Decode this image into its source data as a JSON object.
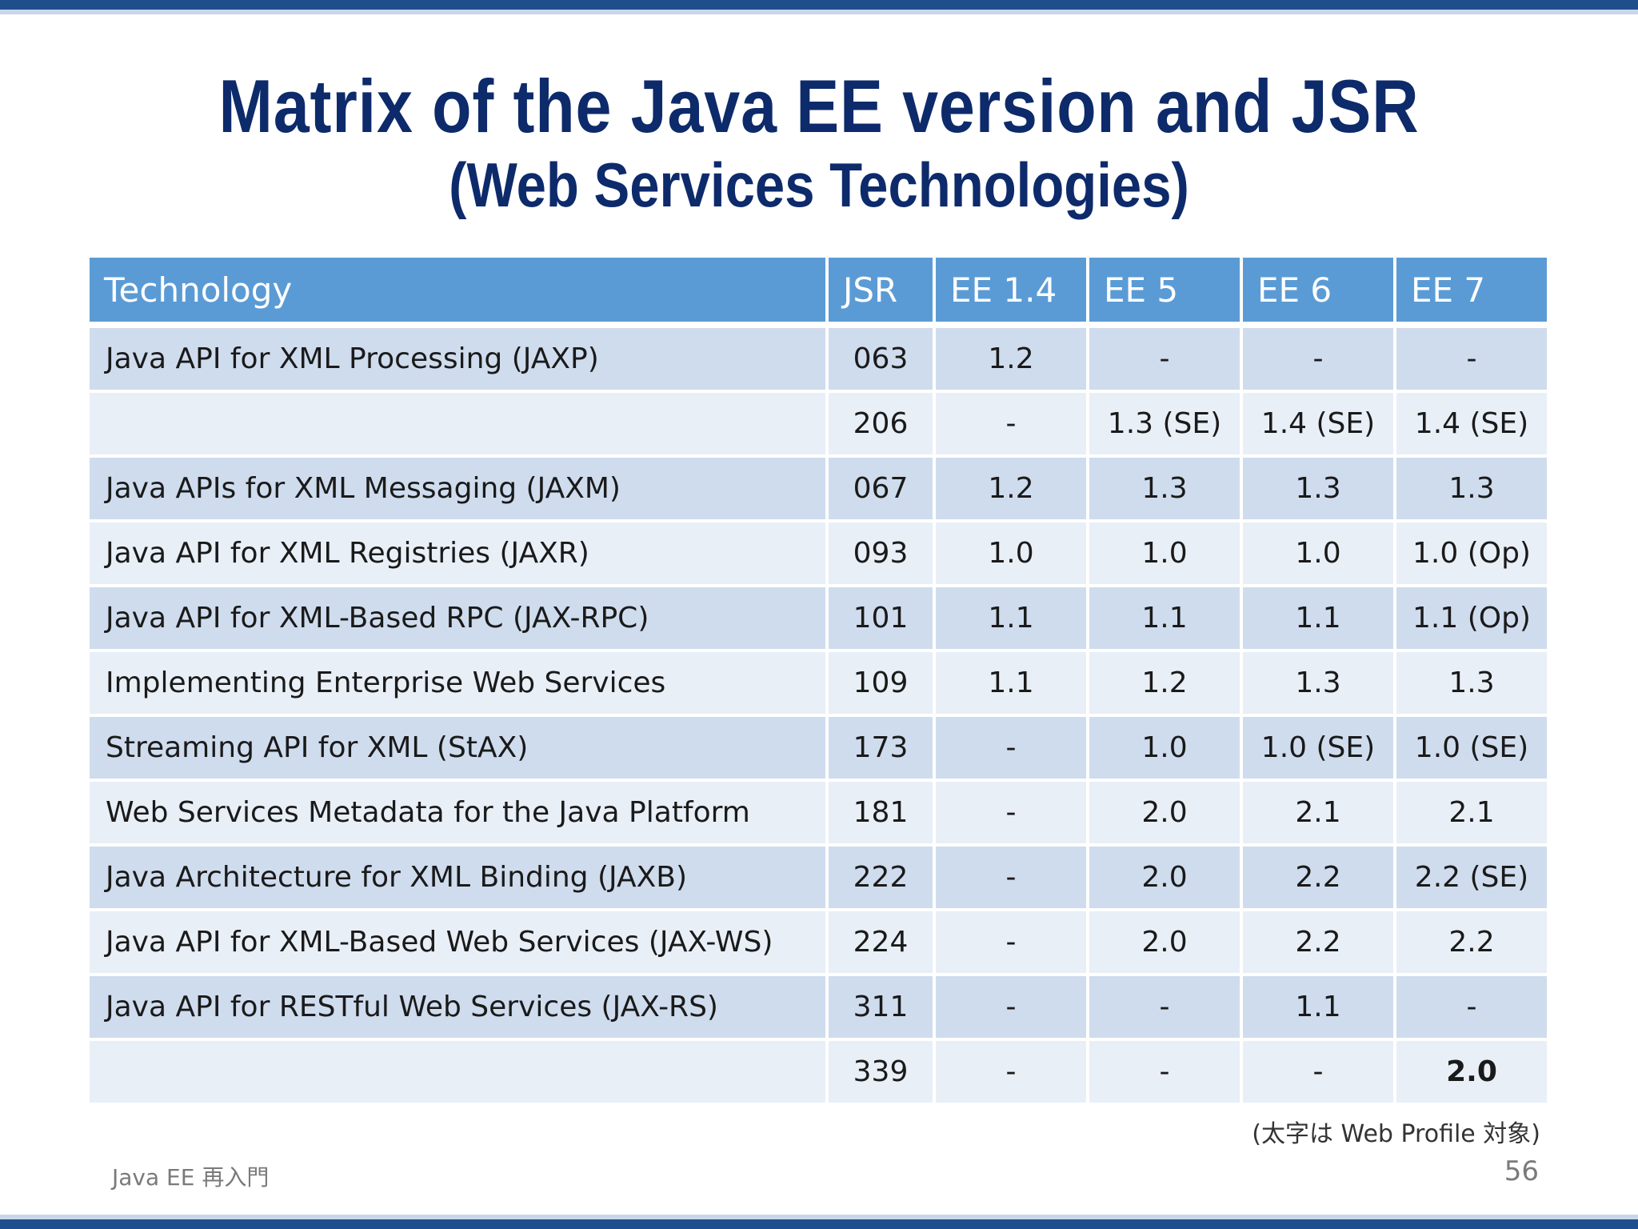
{
  "title": "Matrix of the Java EE version and JSR",
  "subtitle": "(Web Services Technologies)",
  "table": {
    "headers": [
      "Technology",
      "JSR",
      "EE 1.4",
      "EE 5",
      "EE 6",
      "EE 7"
    ],
    "rows": [
      [
        "Java API for XML Processing (JAXP)",
        "063",
        "1.2",
        "-",
        "-",
        "-"
      ],
      [
        "",
        "206",
        "-",
        "1.3 (SE)",
        "1.4 (SE)",
        "1.4 (SE)"
      ],
      [
        "Java APIs for XML Messaging (JAXM)",
        "067",
        "1.2",
        "1.3",
        "1.3",
        "1.3"
      ],
      [
        "Java API for XML Registries (JAXR)",
        "093",
        "1.0",
        "1.0",
        "1.0",
        "1.0 (Op)"
      ],
      [
        "Java API for XML-Based RPC (JAX-RPC)",
        "101",
        "1.1",
        "1.1",
        "1.1",
        "1.1 (Op)"
      ],
      [
        "Implementing Enterprise Web Services",
        "109",
        "1.1",
        "1.2",
        "1.3",
        "1.3"
      ],
      [
        "Streaming API for XML (StAX)",
        "173",
        "-",
        "1.0",
        "1.0 (SE)",
        "1.0 (SE)"
      ],
      [
        "Web Services Metadata for the Java Platform",
        "181",
        "-",
        "2.0",
        "2.1",
        "2.1"
      ],
      [
        "Java Architecture for XML Binding (JAXB)",
        "222",
        "-",
        "2.0",
        "2.2",
        "2.2 (SE)"
      ],
      [
        "Java API for XML-Based Web Services (JAX-WS)",
        "224",
        "-",
        "2.0",
        "2.2",
        "2.2"
      ],
      [
        "Java API for RESTful Web Services (JAX-RS)",
        "311",
        "-",
        "-",
        "1.1",
        "-"
      ],
      [
        "",
        "339",
        "-",
        "-",
        "-",
        "2.0"
      ]
    ]
  },
  "note": "(太字は Web Profile 対象)",
  "footer": "Java EE 再入門",
  "page_number": "56",
  "colors": {
    "header_bg": "#5b9bd5",
    "row_odd": "#cfdcee",
    "row_even": "#e9eff7",
    "title": "#0d2a6b",
    "bar": "#1f4e8c"
  }
}
